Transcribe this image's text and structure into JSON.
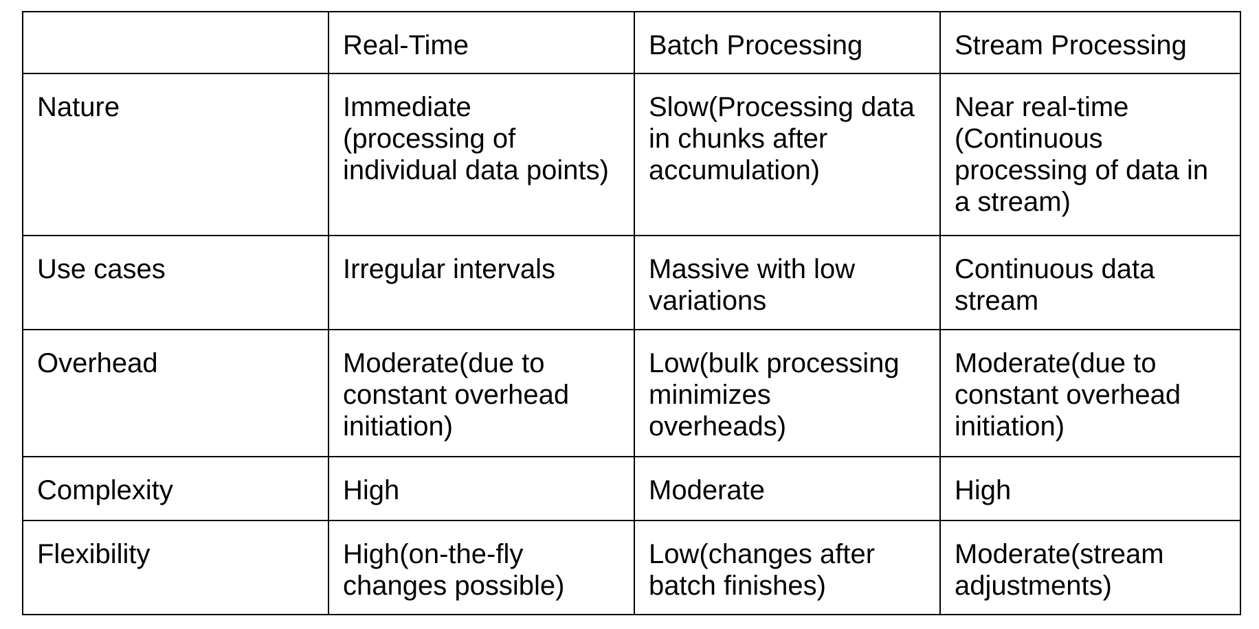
{
  "colors": {
    "background": "#ffffff",
    "border": "#000000",
    "text": "#000000"
  },
  "table": {
    "columns": [
      "",
      "Real-Time",
      "Batch Processing",
      "Stream Processing"
    ],
    "rows": [
      {
        "label": "Nature",
        "cells": [
          "Immediate\n(processing of\nindividual data points)",
          "Slow(Processing data\nin chunks after\naccumulation)",
          "Near real-time\n(Continuous\nprocessing of data in\na stream)"
        ]
      },
      {
        "label": "Use cases",
        "cells": [
          "Irregular intervals",
          "Massive with low\nvariations",
          "Continuous data\nstream"
        ]
      },
      {
        "label": "Overhead",
        "cells": [
          "Moderate(due to\nconstant overhead\ninitiation)",
          "Low(bulk processing\nminimizes\noverheads)",
          "Moderate(due to\nconstant overhead\ninitiation)"
        ]
      },
      {
        "label": "Complexity",
        "cells": [
          "High",
          "Moderate",
          "High"
        ]
      },
      {
        "label": "Flexibility",
        "cells": [
          "High(on-the-fly\nchanges possible)",
          "Low(changes after\nbatch finishes)",
          "Moderate(stream\nadjustments)"
        ]
      }
    ]
  }
}
